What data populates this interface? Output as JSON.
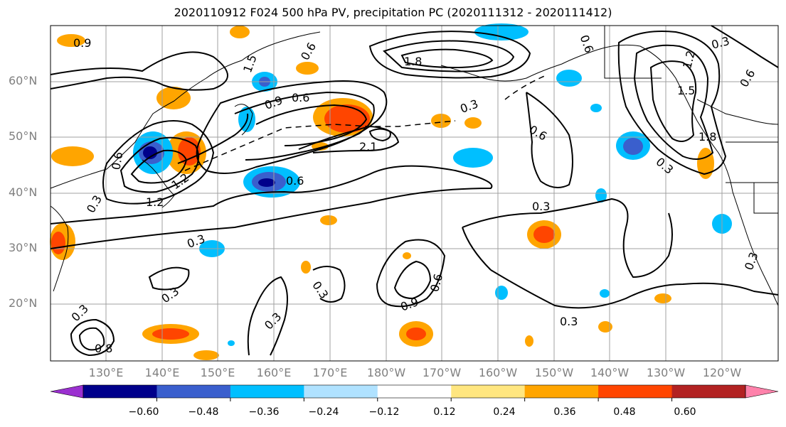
{
  "title": "2020110912 F024 500 hPa PV, precipitation PC (2020111312 - 2020111412)",
  "lat_labels": [
    "60°N",
    "50°N",
    "40°N",
    "30°N",
    "20°N"
  ],
  "lon_labels": [
    "130°E",
    "140°E",
    "150°E",
    "160°E",
    "170°E",
    "180°W",
    "170°W",
    "160°W",
    "150°W",
    "140°W",
    "130°W",
    "120°W"
  ],
  "contour_labels": [
    "0.9",
    "1.5",
    "1.8",
    "0.6",
    "0.6",
    "0.3",
    "0.6",
    "0.9",
    "0.6",
    "2.1",
    "1.2",
    "0.6",
    "1.2",
    "0.3",
    "0.3",
    "0.3",
    "0.3",
    "0.3",
    "0.3",
    "0.9",
    "0.6",
    "0.3",
    "0.6",
    "0.3",
    "1.2",
    "1.5",
    "1.8",
    "0.3",
    "0.6",
    "0.3",
    "0.8",
    "0.3"
  ],
  "colorbar": {
    "tick_labels": [
      "−0.60",
      "−0.48",
      "−0.36",
      "−0.24",
      "−0.12",
      "0.12",
      "0.24",
      "0.36",
      "0.48",
      "0.60"
    ],
    "colors": [
      "#9b30d0",
      "#00008b",
      "#3a5fcd",
      "#00bfff",
      "#b0e2ff",
      "#ffffff",
      "#ffe680",
      "#ffa500",
      "#ff4500",
      "#b22222",
      "#ff82ab"
    ]
  }
}
